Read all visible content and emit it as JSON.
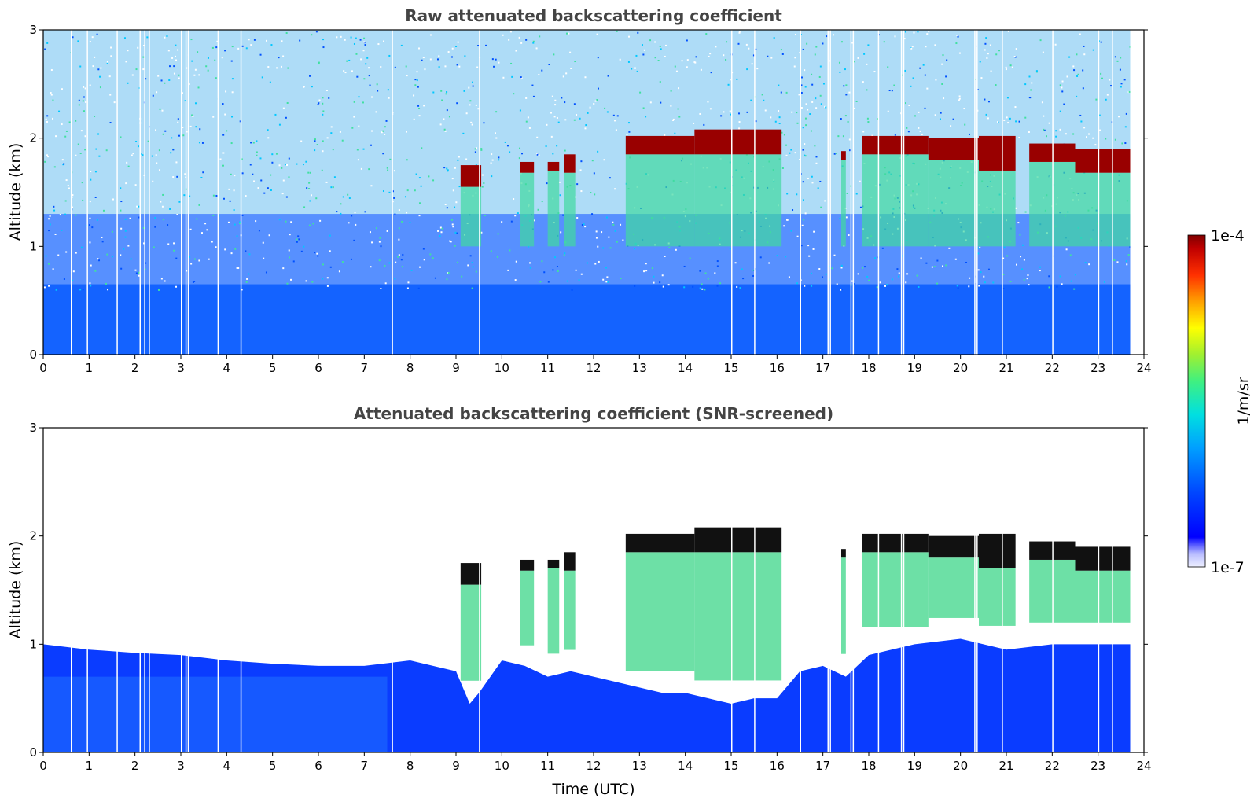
{
  "chart_data": [
    {
      "type": "heatmap",
      "title": "Raw attenuated backscattering coefficient",
      "xlabel": "",
      "ylabel": "Altitude (km)",
      "xlim": [
        0,
        24
      ],
      "ylim": [
        0,
        3
      ],
      "xticks": [
        "0",
        "1",
        "2",
        "3",
        "4",
        "5",
        "6",
        "7",
        "8",
        "9",
        "10",
        "11",
        "12",
        "13",
        "14",
        "15",
        "16",
        "17",
        "18",
        "19",
        "20",
        "21",
        "22",
        "23",
        "24"
      ],
      "yticks": [
        "0",
        "1",
        "2",
        "3"
      ],
      "data_end_time": 23.7,
      "noise_floor_altitude_km": 0.7,
      "cloud_layers": [
        {
          "start": 9.1,
          "end": 9.55,
          "base": 1.55,
          "top": 1.75
        },
        {
          "start": 10.4,
          "end": 10.7,
          "base": 1.68,
          "top": 1.78
        },
        {
          "start": 11.0,
          "end": 11.25,
          "base": 1.7,
          "top": 1.78
        },
        {
          "start": 11.35,
          "end": 11.6,
          "base": 1.68,
          "top": 1.85
        },
        {
          "start": 12.7,
          "end": 14.2,
          "base": 1.85,
          "top": 2.02
        },
        {
          "start": 14.2,
          "end": 16.1,
          "base": 1.85,
          "top": 2.08
        },
        {
          "start": 17.4,
          "end": 17.5,
          "base": 1.8,
          "top": 1.88
        },
        {
          "start": 17.85,
          "end": 19.3,
          "base": 1.85,
          "top": 2.02
        },
        {
          "start": 19.3,
          "end": 20.4,
          "base": 1.8,
          "top": 2.0
        },
        {
          "start": 20.4,
          "end": 21.2,
          "base": 1.7,
          "top": 2.02
        },
        {
          "start": 21.5,
          "end": 22.5,
          "base": 1.78,
          "top": 1.95
        },
        {
          "start": 22.5,
          "end": 23.7,
          "base": 1.68,
          "top": 1.9
        }
      ],
      "gaps": [
        0.6,
        0.95,
        1.6,
        2.1,
        2.2,
        2.3,
        3.0,
        3.1,
        3.15,
        3.8,
        4.3,
        7.6,
        9.5,
        15.0,
        15.5,
        16.5,
        17.1,
        17.15,
        17.6,
        17.65,
        18.2,
        18.7,
        18.75,
        20.3,
        20.35,
        20.9,
        22.0,
        23.0,
        23.3
      ]
    },
    {
      "type": "heatmap",
      "title": "Attenuated backscattering coefficient (SNR-screened)",
      "xlabel": "Time (UTC)",
      "ylabel": "Altitude (km)",
      "xlim": [
        0,
        24
      ],
      "ylim": [
        0,
        3
      ],
      "xticks": [
        "0",
        "1",
        "2",
        "3",
        "4",
        "5",
        "6",
        "7",
        "8",
        "9",
        "10",
        "11",
        "12",
        "13",
        "14",
        "15",
        "16",
        "17",
        "18",
        "19",
        "20",
        "21",
        "22",
        "23",
        "24"
      ],
      "yticks": [
        "0",
        "1",
        "2",
        "3"
      ],
      "data_end_time": 23.7,
      "screened_boundary": [
        [
          0,
          1.0
        ],
        [
          1,
          0.95
        ],
        [
          2,
          0.92
        ],
        [
          3,
          0.9
        ],
        [
          4,
          0.85
        ],
        [
          5,
          0.82
        ],
        [
          6,
          0.8
        ],
        [
          7,
          0.8
        ],
        [
          8,
          0.85
        ],
        [
          9,
          0.75
        ],
        [
          9.3,
          0.45
        ],
        [
          9.5,
          0.55
        ],
        [
          10,
          0.85
        ],
        [
          10.5,
          0.8
        ],
        [
          11,
          0.7
        ],
        [
          11.5,
          0.75
        ],
        [
          12,
          0.7
        ],
        [
          12.5,
          0.65
        ],
        [
          13,
          0.6
        ],
        [
          13.5,
          0.55
        ],
        [
          14,
          0.55
        ],
        [
          14.5,
          0.5
        ],
        [
          15,
          0.45
        ],
        [
          15.5,
          0.5
        ],
        [
          16,
          0.5
        ],
        [
          16.5,
          0.75
        ],
        [
          17,
          0.8
        ],
        [
          17.5,
          0.7
        ],
        [
          18,
          0.9
        ],
        [
          19,
          1.0
        ],
        [
          20,
          1.05
        ],
        [
          21,
          0.95
        ],
        [
          22,
          1.0
        ],
        [
          23,
          1.0
        ],
        [
          23.7,
          1.0
        ]
      ]
    }
  ],
  "colorbar": {
    "label": "1/m/sr",
    "max_label": "1e-4",
    "min_label": "1e-7",
    "colormap": "jet-white"
  },
  "colors": {
    "axis": "#000000",
    "title": "#444444",
    "background": "#ffffff"
  }
}
